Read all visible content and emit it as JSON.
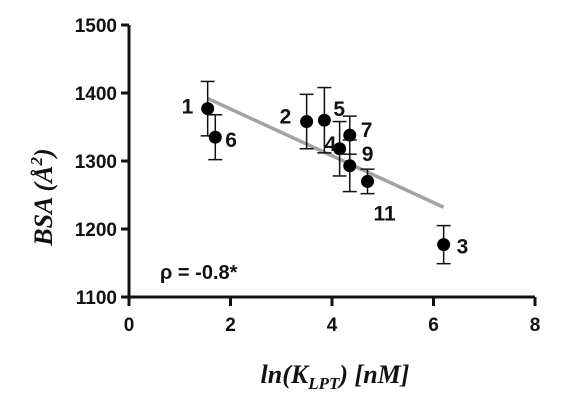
{
  "chart_data": {
    "type": "scatter",
    "xlabel": "ln(KLPT) [nM]",
    "xlabel_parts": {
      "pre": "ln(K",
      "sub": "LPT",
      "post": ") [nM]"
    },
    "ylabel": "BSA (Å2)",
    "ylabel_parts": {
      "pre": "BSA (",
      "main": "Å",
      "sup": "2",
      "post": ")"
    },
    "xlim": [
      0,
      8
    ],
    "ylim": [
      1100,
      1500
    ],
    "xticks": [
      0,
      2,
      4,
      6,
      8
    ],
    "yticks": [
      1100,
      1200,
      1300,
      1400,
      1500
    ],
    "xtick_labels": [
      "0",
      "2",
      "4",
      "6",
      "8"
    ],
    "ytick_labels": [
      "1100",
      "1200",
      "1300",
      "1400",
      "1500"
    ],
    "grid": false,
    "points": [
      {
        "label": "1",
        "x": 1.55,
        "y": 1377,
        "err": 40
      },
      {
        "label": "6",
        "x": 1.7,
        "y": 1335,
        "err": 33
      },
      {
        "label": "2",
        "x": 3.5,
        "y": 1358,
        "err": 40
      },
      {
        "label": "5",
        "x": 3.85,
        "y": 1360,
        "err": 48
      },
      {
        "label": "4",
        "x": 4.15,
        "y": 1318,
        "err": 40
      },
      {
        "label": "7",
        "x": 4.35,
        "y": 1338,
        "err": 28
      },
      {
        "label": "9",
        "x": 4.35,
        "y": 1293,
        "err": 38
      },
      {
        "label": "11",
        "x": 4.7,
        "y": 1270,
        "err": 18
      },
      {
        "label": "3",
        "x": 6.2,
        "y": 1177,
        "err": 28
      }
    ],
    "trendline": {
      "x": [
        1.55,
        6.2
      ],
      "y": [
        1392,
        1232
      ],
      "color": "#a3a3a3"
    },
    "annotation": "ρ = -0.8*"
  }
}
